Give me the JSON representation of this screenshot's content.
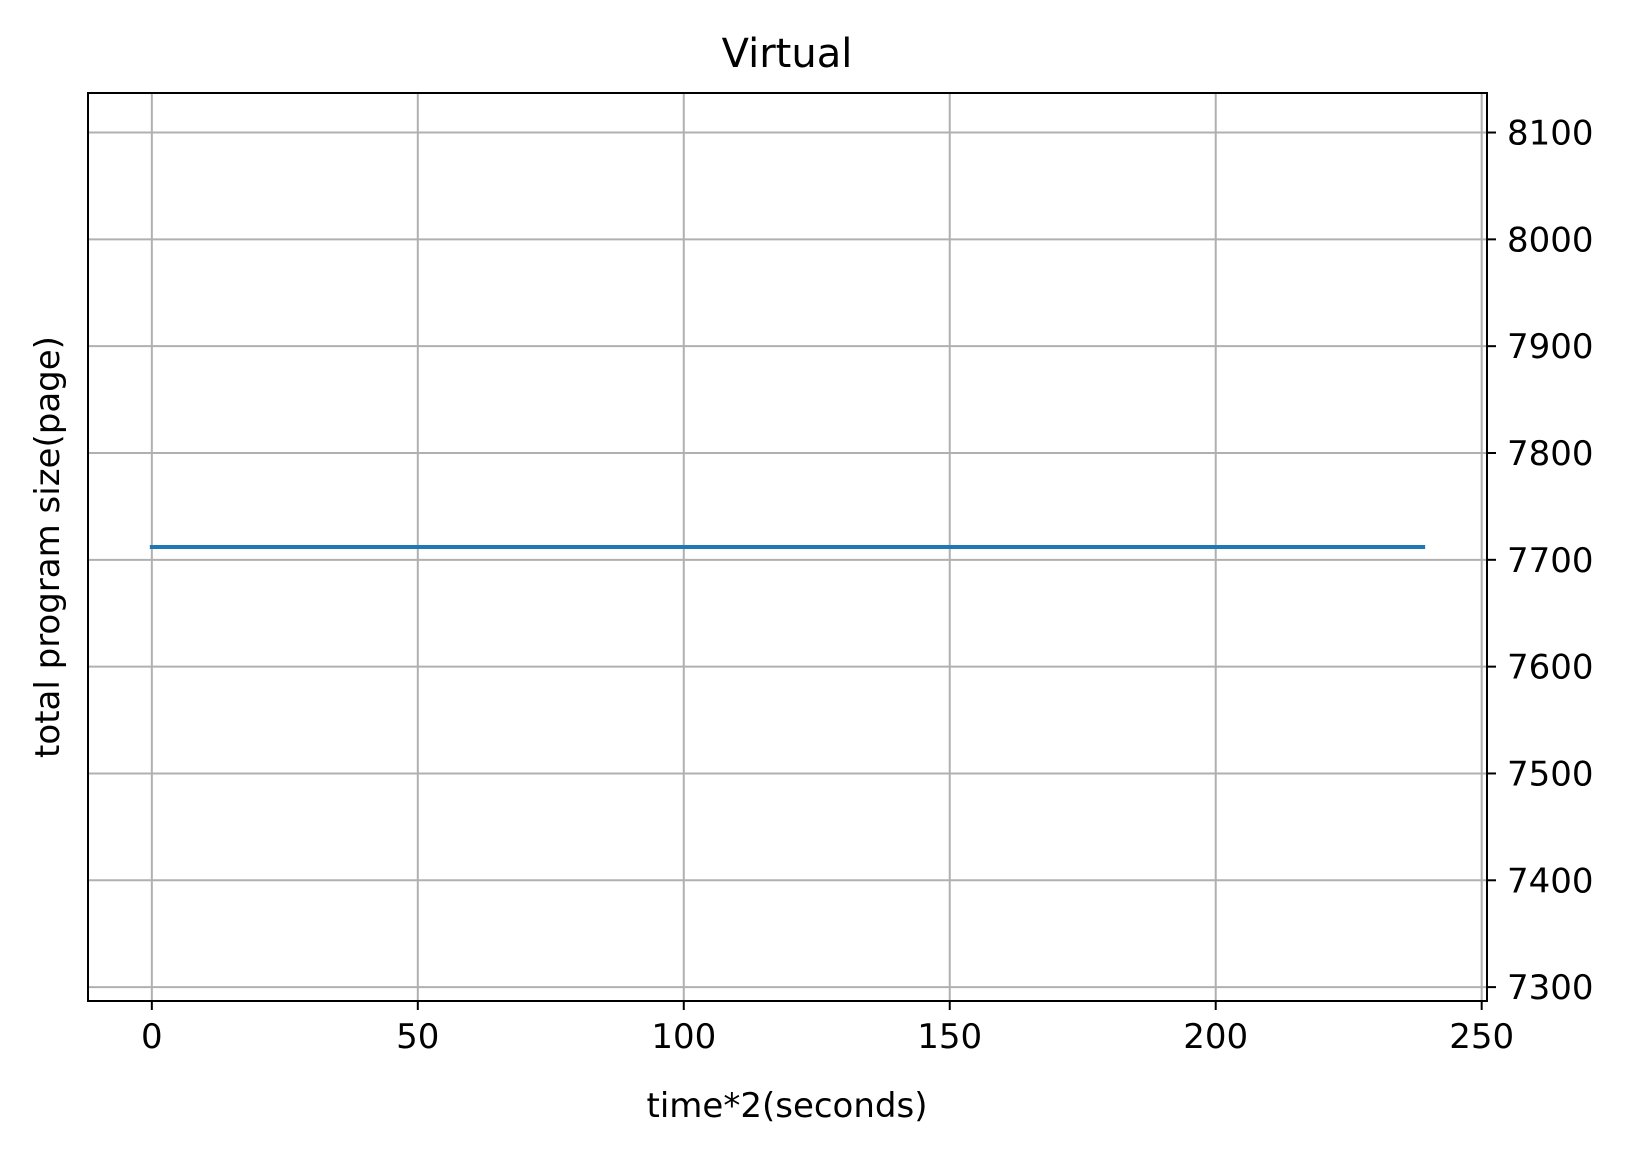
{
  "chart_data": {
    "type": "line",
    "title": "Virtual",
    "xlabel": "time*2(seconds)",
    "ylabel": "total program size(page)",
    "xlim": [
      -12,
      251
    ],
    "ylim": [
      7287,
      8137
    ],
    "x_ticks": [
      0,
      50,
      100,
      150,
      200,
      250
    ],
    "y_ticks": [
      7300,
      7400,
      7500,
      7600,
      7700,
      7800,
      7900,
      8000,
      8100
    ],
    "y_axis_side": "right",
    "grid": true,
    "legend": "none",
    "series": [
      {
        "color": "#1f77b4",
        "x": [
          0,
          239
        ],
        "y": [
          7712,
          7712
        ]
      }
    ],
    "colors": {
      "grid": "#b0b0b0",
      "axis": "#000000",
      "background": "#ffffff"
    }
  }
}
